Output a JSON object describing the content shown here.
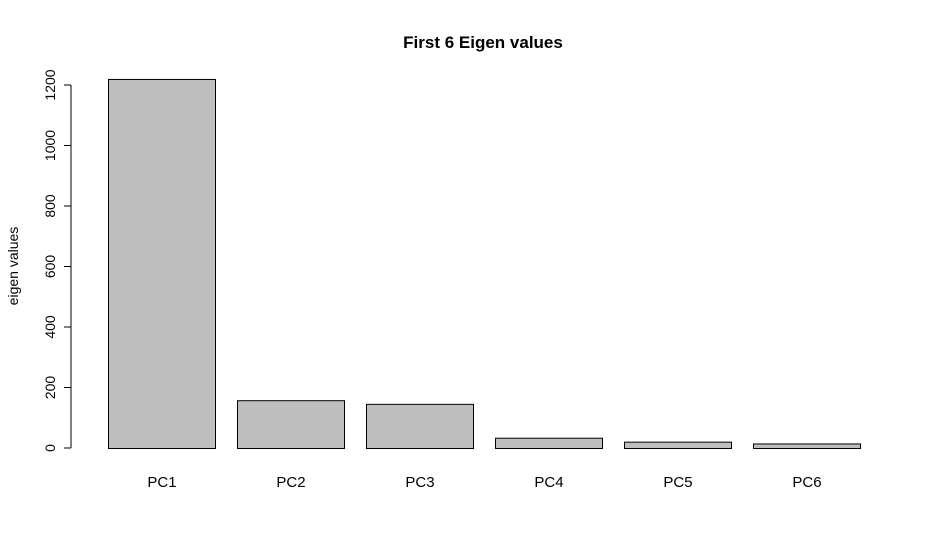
{
  "chart_data": {
    "type": "bar",
    "title": "First 6 Eigen values",
    "xlabel": "",
    "ylabel": "eigen values",
    "categories": [
      "PC1",
      "PC2",
      "PC3",
      "PC4",
      "PC5",
      "PC6"
    ],
    "values": [
      1220,
      158,
      146,
      34,
      21,
      15
    ],
    "ylim": [
      0,
      1200
    ],
    "yticks": [
      "0",
      "200",
      "400",
      "600",
      "800",
      "1000",
      "1200"
    ],
    "grid": false,
    "bar_color": "#bebebe",
    "bar_border_color": "#000000"
  }
}
